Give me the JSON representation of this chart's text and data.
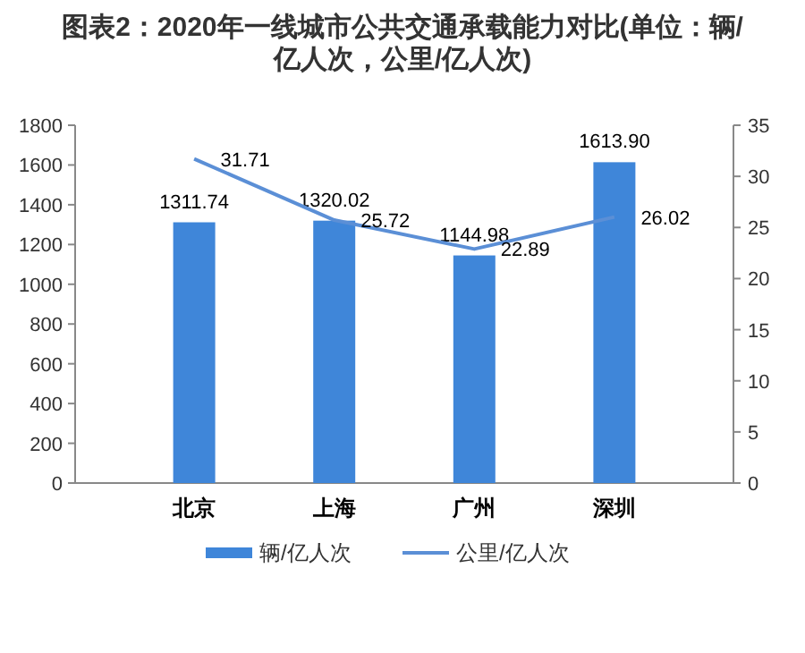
{
  "chart_data": {
    "type": "bar",
    "title": "图表2：2020年一线城市公共交通承载能力对比(单位：辆/亿人次，公里/亿人次)",
    "categories": [
      "北京",
      "上海",
      "广州",
      "深圳"
    ],
    "series": [
      {
        "name": "辆/亿人次",
        "color": "#3f86d9",
        "values": [
          1311.74,
          1320.02,
          1144.98,
          1613.9
        ]
      },
      {
        "name": "公里/亿人次",
        "type": "line",
        "axis": "y2",
        "color": "#5b8fd6",
        "values": [
          31.71,
          25.72,
          22.89,
          26.02
        ]
      }
    ],
    "ylim": [
      0,
      1800
    ],
    "yticks": [
      0,
      200,
      400,
      600,
      800,
      1000,
      1200,
      1400,
      1600,
      1800
    ],
    "y2lim": [
      0,
      35
    ],
    "y2ticks": [
      0,
      5,
      10,
      15,
      20,
      25,
      30,
      35
    ],
    "value_labels": [
      [
        "1311.74",
        "1320.02",
        "1144.98",
        "1613.90"
      ],
      [
        "31.71",
        "25.72",
        "22.89",
        "26.02"
      ]
    ],
    "legend": "bottom",
    "grid": false,
    "marker": "none",
    "line_style": "solid"
  }
}
